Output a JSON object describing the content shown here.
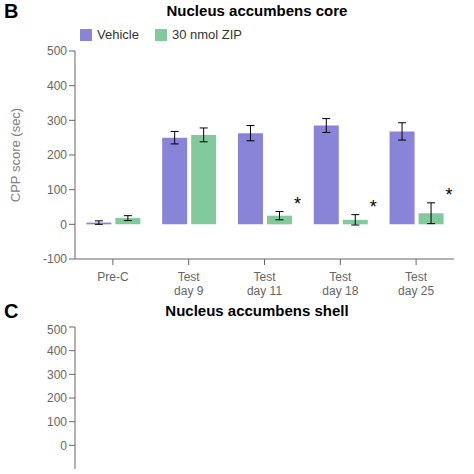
{
  "chart_data": [
    {
      "type": "bar",
      "title": "Nucleus accumbens core",
      "panel_label": "B",
      "ylabel": "CPP score (sec)",
      "categories": [
        "Pre-C",
        "Test\nday 9",
        "Test\nday 11",
        "Test\nday 18",
        "Test\nday 25"
      ],
      "series": [
        {
          "name": "Vehicle",
          "color": "#8884d8",
          "values": [
            5,
            250,
            263,
            285,
            268
          ],
          "errors": [
            5,
            18,
            22,
            20,
            25
          ]
        },
        {
          "name": "30 nmol ZIP",
          "color": "#82ca9d",
          "values": [
            18,
            258,
            25,
            13,
            32
          ],
          "errors": [
            7,
            20,
            12,
            15,
            30
          ]
        }
      ],
      "ylim": [
        -100,
        500
      ],
      "yticks": [
        -100,
        0,
        100,
        200,
        300,
        400,
        500
      ],
      "legend": "top",
      "annotations": [
        {
          "text": "*",
          "series": "30 nmol ZIP",
          "category": "Test\nday 11"
        },
        {
          "text": "*",
          "series": "30 nmol ZIP",
          "category": "Test\nday 18"
        },
        {
          "text": "*",
          "series": "30 nmol ZIP",
          "category": "Test\nday 25"
        }
      ]
    },
    {
      "type": "empty",
      "title": "Nucleus accumbens shell",
      "panel_label": "C",
      "ylim": [
        -100,
        500
      ],
      "yticks": [
        0,
        100,
        200,
        300,
        400,
        500
      ],
      "tick_labels": "y"
    }
  ]
}
